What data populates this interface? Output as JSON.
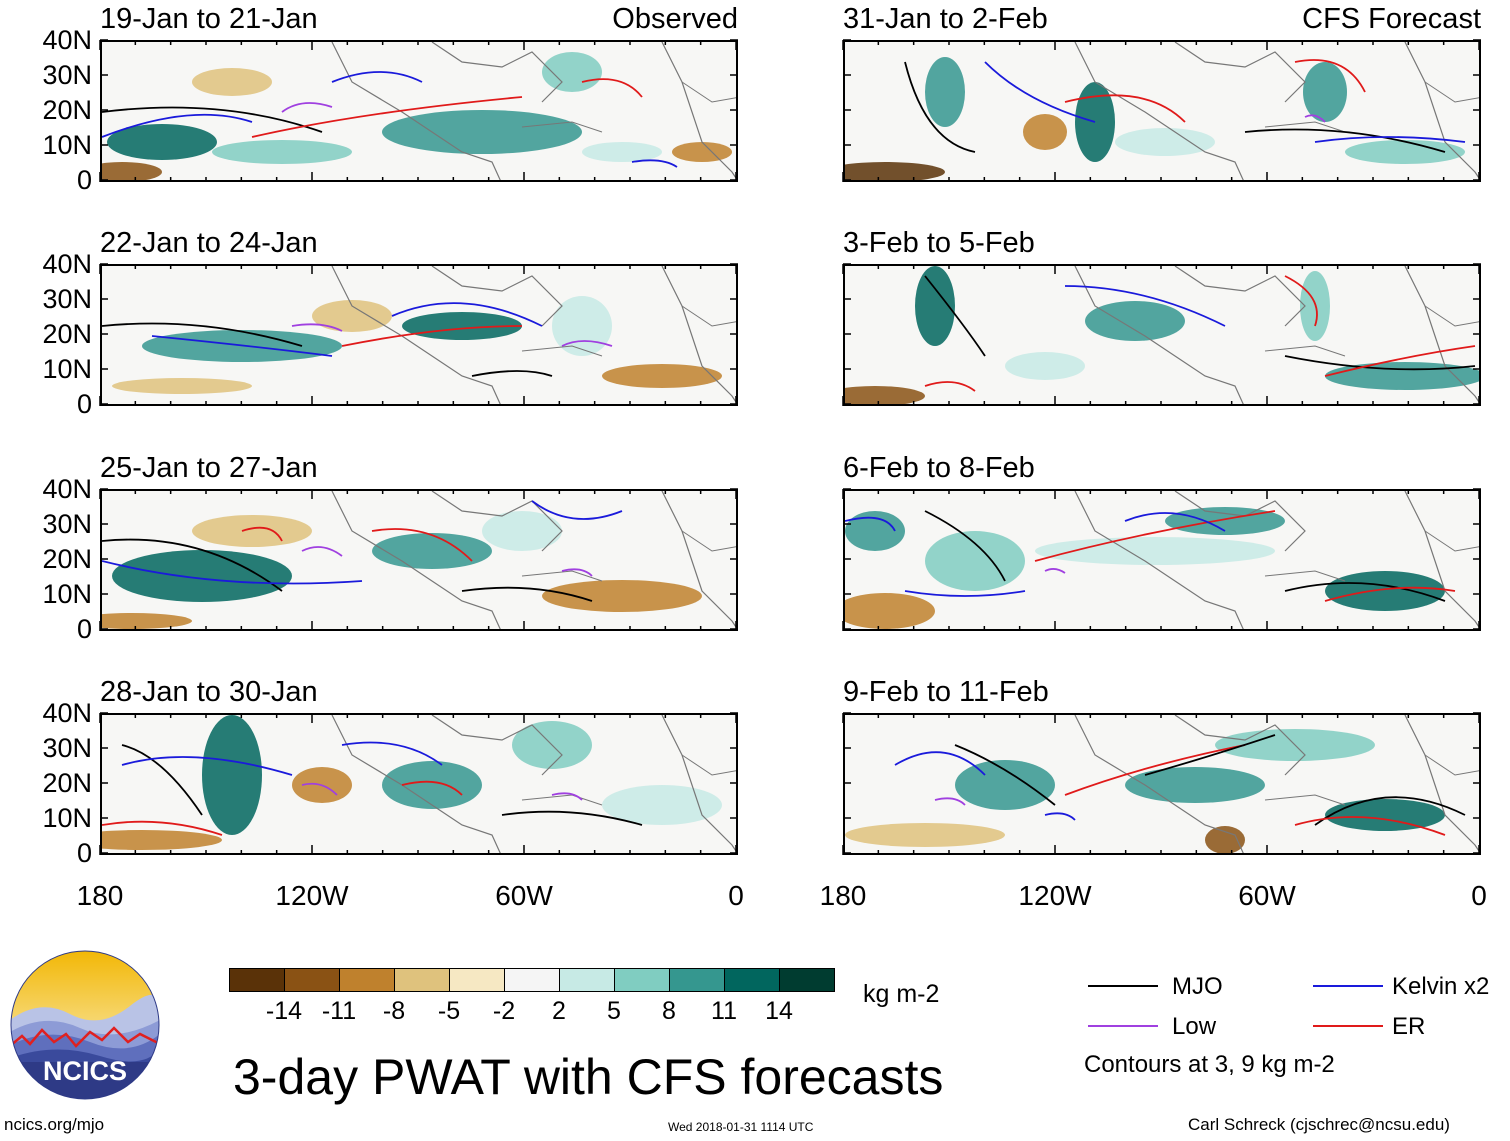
{
  "panels": [
    {
      "title": "19-Jan to 21-Jan",
      "label": "Observed"
    },
    {
      "title": "31-Jan to 2-Feb",
      "label": "CFS Forecast"
    },
    {
      "title": "22-Jan to 24-Jan",
      "label": ""
    },
    {
      "title": "3-Feb to 5-Feb",
      "label": ""
    },
    {
      "title": "25-Jan to 27-Jan",
      "label": ""
    },
    {
      "title": "6-Feb to 8-Feb",
      "label": ""
    },
    {
      "title": "28-Jan to 30-Jan",
      "label": ""
    },
    {
      "title": "9-Feb to 11-Feb",
      "label": ""
    }
  ],
  "lat_labels": [
    "40N",
    "30N",
    "20N",
    "10N",
    "0"
  ],
  "lon_labels": [
    "180",
    "120W",
    "60W",
    "0"
  ],
  "colorbar": {
    "colors": [
      "#5a3208",
      "#8a5214",
      "#bf812d",
      "#dfc27d",
      "#f6e8c3",
      "#f5f5f5",
      "#c7eae5",
      "#80cdc1",
      "#35978f",
      "#01665e",
      "#003c30"
    ],
    "ticks": [
      "-14",
      "-11",
      "-8",
      "-5",
      "-2",
      "2",
      "5",
      "8",
      "11",
      "14"
    ],
    "units": "kg m-2"
  },
  "legend": {
    "items": [
      {
        "name": "MJO",
        "color": "#000000"
      },
      {
        "name": "Kelvin x2",
        "color": "#1a1adb"
      },
      {
        "name": "Low",
        "color": "#a040e0"
      },
      {
        "name": "ER",
        "color": "#e01a1a"
      }
    ],
    "note": "Contours at 3, 9 kg m-2"
  },
  "main_title": "3-day PWAT with CFS forecasts",
  "logo_text": "NCICS",
  "footer": {
    "left": "ncics.org/mjo",
    "center": "Wed 2018-01-31 1114 UTC",
    "right": "Carl Schreck (cjschrec@ncsu.edu)"
  }
}
